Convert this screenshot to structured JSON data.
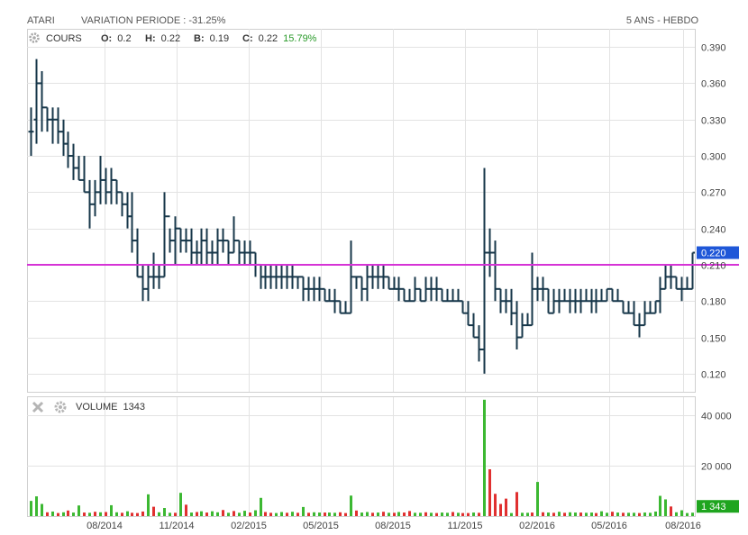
{
  "header": {
    "symbol": "ATARI",
    "variation": "VARIATION PERIODE : -31.25%",
    "period": "5 ANS - HEBDO"
  },
  "price_panel": {
    "label": "COURS",
    "o_key": "O:",
    "o_val": "0.2",
    "h_key": "H:",
    "h_val": "0.22",
    "b_key": "B:",
    "b_val": "0.19",
    "c_key": "C:",
    "c_val": "0.22",
    "change": "15.79%",
    "last_price_badge": "0.220",
    "reference_level": 0.21,
    "icons": [
      "gear-icon"
    ]
  },
  "volume_panel": {
    "label": "VOLUME",
    "value": "1343",
    "last_volume_badge": "1 343",
    "icons": [
      "close-icon",
      "gear-icon"
    ]
  },
  "colors": {
    "bars": "#17374a",
    "reference_line": "#d633d6",
    "volume_up": "#3cb832",
    "volume_down": "#e03030",
    "badge_price": "#1f57d8",
    "badge_volume": "#1fa51f",
    "change_text": "#2a9a2a",
    "grid": "#e3e3e3"
  },
  "chart_data": [
    {
      "type": "ohlc",
      "title": "COURS",
      "y_ticks": [
        "0.390",
        "0.360",
        "0.330",
        "0.300",
        "0.270",
        "0.240",
        "0.210",
        "0.180",
        "0.150",
        "0.120"
      ],
      "ylim": [
        0.105,
        0.405
      ],
      "x_ticks": [
        "08/2014",
        "11/2014",
        "02/2015",
        "05/2015",
        "08/2015",
        "11/2015",
        "02/2016",
        "05/2016",
        "08/2016"
      ],
      "grid": true,
      "bars": [
        [
          0.32,
          0.34,
          0.3,
          0.32
        ],
        [
          0.33,
          0.38,
          0.31,
          0.36
        ],
        [
          0.36,
          0.37,
          0.32,
          0.34
        ],
        [
          0.34,
          0.34,
          0.32,
          0.33
        ],
        [
          0.33,
          0.34,
          0.31,
          0.33
        ],
        [
          0.33,
          0.34,
          0.31,
          0.32
        ],
        [
          0.32,
          0.33,
          0.3,
          0.31
        ],
        [
          0.31,
          0.32,
          0.29,
          0.3
        ],
        [
          0.3,
          0.31,
          0.28,
          0.29
        ],
        [
          0.29,
          0.3,
          0.28,
          0.28
        ],
        [
          0.28,
          0.3,
          0.27,
          0.27
        ],
        [
          0.27,
          0.28,
          0.24,
          0.26
        ],
        [
          0.26,
          0.28,
          0.25,
          0.27
        ],
        [
          0.27,
          0.3,
          0.26,
          0.28
        ],
        [
          0.28,
          0.29,
          0.26,
          0.27
        ],
        [
          0.27,
          0.29,
          0.26,
          0.28
        ],
        [
          0.28,
          0.28,
          0.26,
          0.27
        ],
        [
          0.27,
          0.27,
          0.25,
          0.26
        ],
        [
          0.26,
          0.27,
          0.24,
          0.25
        ],
        [
          0.25,
          0.27,
          0.22,
          0.23
        ],
        [
          0.23,
          0.24,
          0.2,
          0.2
        ],
        [
          0.2,
          0.21,
          0.18,
          0.19
        ],
        [
          0.19,
          0.21,
          0.18,
          0.2
        ],
        [
          0.2,
          0.22,
          0.19,
          0.2
        ],
        [
          0.2,
          0.21,
          0.19,
          0.2
        ],
        [
          0.2,
          0.27,
          0.2,
          0.25
        ],
        [
          0.25,
          0.24,
          0.22,
          0.23
        ],
        [
          0.23,
          0.25,
          0.21,
          0.24
        ],
        [
          0.24,
          0.24,
          0.22,
          0.23
        ],
        [
          0.23,
          0.24,
          0.22,
          0.23
        ],
        [
          0.23,
          0.24,
          0.21,
          0.22
        ],
        [
          0.22,
          0.23,
          0.21,
          0.22
        ],
        [
          0.22,
          0.24,
          0.21,
          0.23
        ],
        [
          0.23,
          0.24,
          0.21,
          0.22
        ],
        [
          0.22,
          0.23,
          0.21,
          0.22
        ],
        [
          0.22,
          0.24,
          0.21,
          0.23
        ],
        [
          0.23,
          0.24,
          0.22,
          0.23
        ],
        [
          0.23,
          0.23,
          0.21,
          0.22
        ],
        [
          0.22,
          0.25,
          0.22,
          0.23
        ],
        [
          0.23,
          0.23,
          0.21,
          0.22
        ],
        [
          0.22,
          0.23,
          0.21,
          0.22
        ],
        [
          0.22,
          0.23,
          0.21,
          0.22
        ],
        [
          0.22,
          0.22,
          0.2,
          0.21
        ],
        [
          0.21,
          0.21,
          0.19,
          0.2
        ],
        [
          0.2,
          0.21,
          0.19,
          0.2
        ],
        [
          0.2,
          0.21,
          0.19,
          0.2
        ],
        [
          0.2,
          0.21,
          0.19,
          0.2
        ],
        [
          0.2,
          0.21,
          0.19,
          0.2
        ],
        [
          0.2,
          0.21,
          0.19,
          0.2
        ],
        [
          0.2,
          0.21,
          0.19,
          0.2
        ],
        [
          0.2,
          0.2,
          0.19,
          0.2
        ],
        [
          0.2,
          0.2,
          0.18,
          0.19
        ],
        [
          0.19,
          0.2,
          0.18,
          0.19
        ],
        [
          0.19,
          0.2,
          0.18,
          0.19
        ],
        [
          0.19,
          0.2,
          0.18,
          0.19
        ],
        [
          0.19,
          0.19,
          0.18,
          0.18
        ],
        [
          0.18,
          0.19,
          0.18,
          0.18
        ],
        [
          0.18,
          0.19,
          0.17,
          0.18
        ],
        [
          0.18,
          0.18,
          0.17,
          0.17
        ],
        [
          0.17,
          0.18,
          0.17,
          0.17
        ],
        [
          0.17,
          0.23,
          0.17,
          0.2
        ],
        [
          0.2,
          0.2,
          0.19,
          0.2
        ],
        [
          0.2,
          0.2,
          0.18,
          0.19
        ],
        [
          0.19,
          0.21,
          0.18,
          0.2
        ],
        [
          0.2,
          0.21,
          0.19,
          0.2
        ],
        [
          0.2,
          0.21,
          0.19,
          0.2
        ],
        [
          0.2,
          0.21,
          0.19,
          0.2
        ],
        [
          0.2,
          0.2,
          0.19,
          0.19
        ],
        [
          0.19,
          0.2,
          0.19,
          0.19
        ],
        [
          0.19,
          0.2,
          0.18,
          0.19
        ],
        [
          0.19,
          0.19,
          0.18,
          0.18
        ],
        [
          0.18,
          0.19,
          0.18,
          0.18
        ],
        [
          0.18,
          0.2,
          0.18,
          0.19
        ],
        [
          0.19,
          0.19,
          0.18,
          0.18
        ],
        [
          0.18,
          0.2,
          0.18,
          0.19
        ],
        [
          0.19,
          0.2,
          0.18,
          0.19
        ],
        [
          0.19,
          0.2,
          0.18,
          0.19
        ],
        [
          0.19,
          0.19,
          0.18,
          0.18
        ],
        [
          0.18,
          0.19,
          0.18,
          0.18
        ],
        [
          0.18,
          0.19,
          0.18,
          0.18
        ],
        [
          0.18,
          0.19,
          0.18,
          0.18
        ],
        [
          0.18,
          0.18,
          0.17,
          0.17
        ],
        [
          0.17,
          0.18,
          0.16,
          0.16
        ],
        [
          0.16,
          0.17,
          0.15,
          0.15
        ],
        [
          0.15,
          0.16,
          0.13,
          0.14
        ],
        [
          0.14,
          0.29,
          0.12,
          0.22
        ],
        [
          0.22,
          0.24,
          0.2,
          0.22
        ],
        [
          0.22,
          0.23,
          0.18,
          0.19
        ],
        [
          0.19,
          0.19,
          0.17,
          0.18
        ],
        [
          0.18,
          0.19,
          0.17,
          0.18
        ],
        [
          0.18,
          0.19,
          0.16,
          0.17
        ],
        [
          0.17,
          0.18,
          0.14,
          0.15
        ],
        [
          0.15,
          0.17,
          0.15,
          0.16
        ],
        [
          0.16,
          0.17,
          0.16,
          0.16
        ],
        [
          0.16,
          0.22,
          0.16,
          0.19
        ],
        [
          0.19,
          0.2,
          0.18,
          0.19
        ],
        [
          0.19,
          0.2,
          0.18,
          0.19
        ],
        [
          0.19,
          0.19,
          0.17,
          0.17
        ],
        [
          0.17,
          0.19,
          0.17,
          0.18
        ],
        [
          0.18,
          0.19,
          0.17,
          0.18
        ],
        [
          0.18,
          0.19,
          0.18,
          0.18
        ],
        [
          0.18,
          0.19,
          0.17,
          0.18
        ],
        [
          0.18,
          0.19,
          0.17,
          0.18
        ],
        [
          0.18,
          0.19,
          0.17,
          0.18
        ],
        [
          0.18,
          0.19,
          0.18,
          0.18
        ],
        [
          0.18,
          0.19,
          0.17,
          0.18
        ],
        [
          0.18,
          0.19,
          0.17,
          0.18
        ],
        [
          0.18,
          0.19,
          0.18,
          0.18
        ],
        [
          0.18,
          0.19,
          0.18,
          0.19
        ],
        [
          0.19,
          0.19,
          0.18,
          0.18
        ],
        [
          0.18,
          0.19,
          0.18,
          0.18
        ],
        [
          0.18,
          0.18,
          0.17,
          0.17
        ],
        [
          0.17,
          0.18,
          0.17,
          0.17
        ],
        [
          0.17,
          0.18,
          0.16,
          0.16
        ],
        [
          0.16,
          0.17,
          0.15,
          0.16
        ],
        [
          0.16,
          0.18,
          0.16,
          0.17
        ],
        [
          0.17,
          0.18,
          0.17,
          0.17
        ],
        [
          0.17,
          0.18,
          0.17,
          0.18
        ],
        [
          0.18,
          0.2,
          0.17,
          0.19
        ],
        [
          0.19,
          0.21,
          0.19,
          0.2
        ],
        [
          0.2,
          0.21,
          0.19,
          0.2
        ],
        [
          0.2,
          0.2,
          0.19,
          0.19
        ],
        [
          0.19,
          0.2,
          0.18,
          0.19
        ],
        [
          0.19,
          0.2,
          0.19,
          0.19
        ],
        [
          0.19,
          0.22,
          0.19,
          0.22
        ]
      ]
    },
    {
      "type": "bar",
      "title": "VOLUME",
      "y_ticks": [
        "40 000",
        "20 000"
      ],
      "ylim": [
        0,
        47000
      ],
      "x_ticks": [
        "08/2014",
        "11/2014",
        "02/2015",
        "05/2015",
        "08/2015",
        "11/2015",
        "02/2016",
        "05/2016",
        "08/2016"
      ],
      "values": [
        6000,
        7800,
        4800,
        1500,
        1800,
        1200,
        1500,
        2200,
        1400,
        4200,
        1400,
        1300,
        1700,
        1500,
        1600,
        4300,
        1500,
        1300,
        1900,
        1300,
        1200,
        1800,
        8600,
        3700,
        1500,
        3200,
        1300,
        1300,
        9200,
        4500,
        1400,
        1600,
        1900,
        1400,
        1900,
        1500,
        2400,
        1300,
        2000,
        1300,
        2100,
        1400,
        2300,
        7200,
        1600,
        1300,
        1200,
        1600,
        1300,
        1700,
        1300,
        3600,
        1300,
        1500,
        1400,
        1400,
        1400,
        1300,
        1500,
        1200,
        8100,
        2200,
        1400,
        1600,
        1300,
        1400,
        1700,
        1300,
        1300,
        1600,
        1400,
        2000,
        1300,
        1300,
        1500,
        1300,
        1200,
        1400,
        1300,
        1600,
        1300,
        1200,
        1200,
        1400,
        1300,
        46000,
        18500,
        8800,
        4800,
        6900,
        1200,
        9500,
        1300,
        1300,
        1400,
        13500,
        1500,
        1400,
        1300,
        1700,
        1300,
        1500,
        1400,
        1400,
        1300,
        1400,
        1200,
        1900,
        1300,
        1700,
        1400,
        1300,
        1300,
        1300,
        1200,
        1400,
        1300,
        1800,
        8000,
        6600,
        3800,
        1500,
        2300,
        1200,
        1343
      ],
      "up": [
        1,
        1,
        1,
        0,
        1,
        0,
        1,
        0,
        1,
        1,
        0,
        1,
        0,
        1,
        0,
        1,
        1,
        0,
        1,
        0,
        0,
        0,
        1,
        0,
        1,
        1,
        1,
        0,
        1,
        0,
        1,
        0,
        1,
        0,
        1,
        1,
        0,
        1,
        0,
        1,
        1,
        0,
        1,
        1,
        0,
        0,
        1,
        1,
        0,
        1,
        0,
        1,
        0,
        1,
        1,
        0,
        1,
        1,
        0,
        0,
        1,
        0,
        1,
        1,
        0,
        1,
        0,
        1,
        0,
        1,
        0,
        0,
        1,
        1,
        0,
        1,
        0,
        1,
        1,
        0,
        1,
        0,
        0,
        1,
        0,
        1,
        0,
        0,
        0,
        0,
        1,
        0,
        1,
        1,
        0,
        1,
        0,
        1,
        0,
        1,
        0,
        1,
        1,
        0,
        1,
        1,
        0,
        1,
        1,
        0,
        1,
        0,
        1,
        1,
        0,
        1,
        1,
        1,
        1,
        1,
        0,
        1,
        1,
        1,
        1
      ]
    }
  ]
}
